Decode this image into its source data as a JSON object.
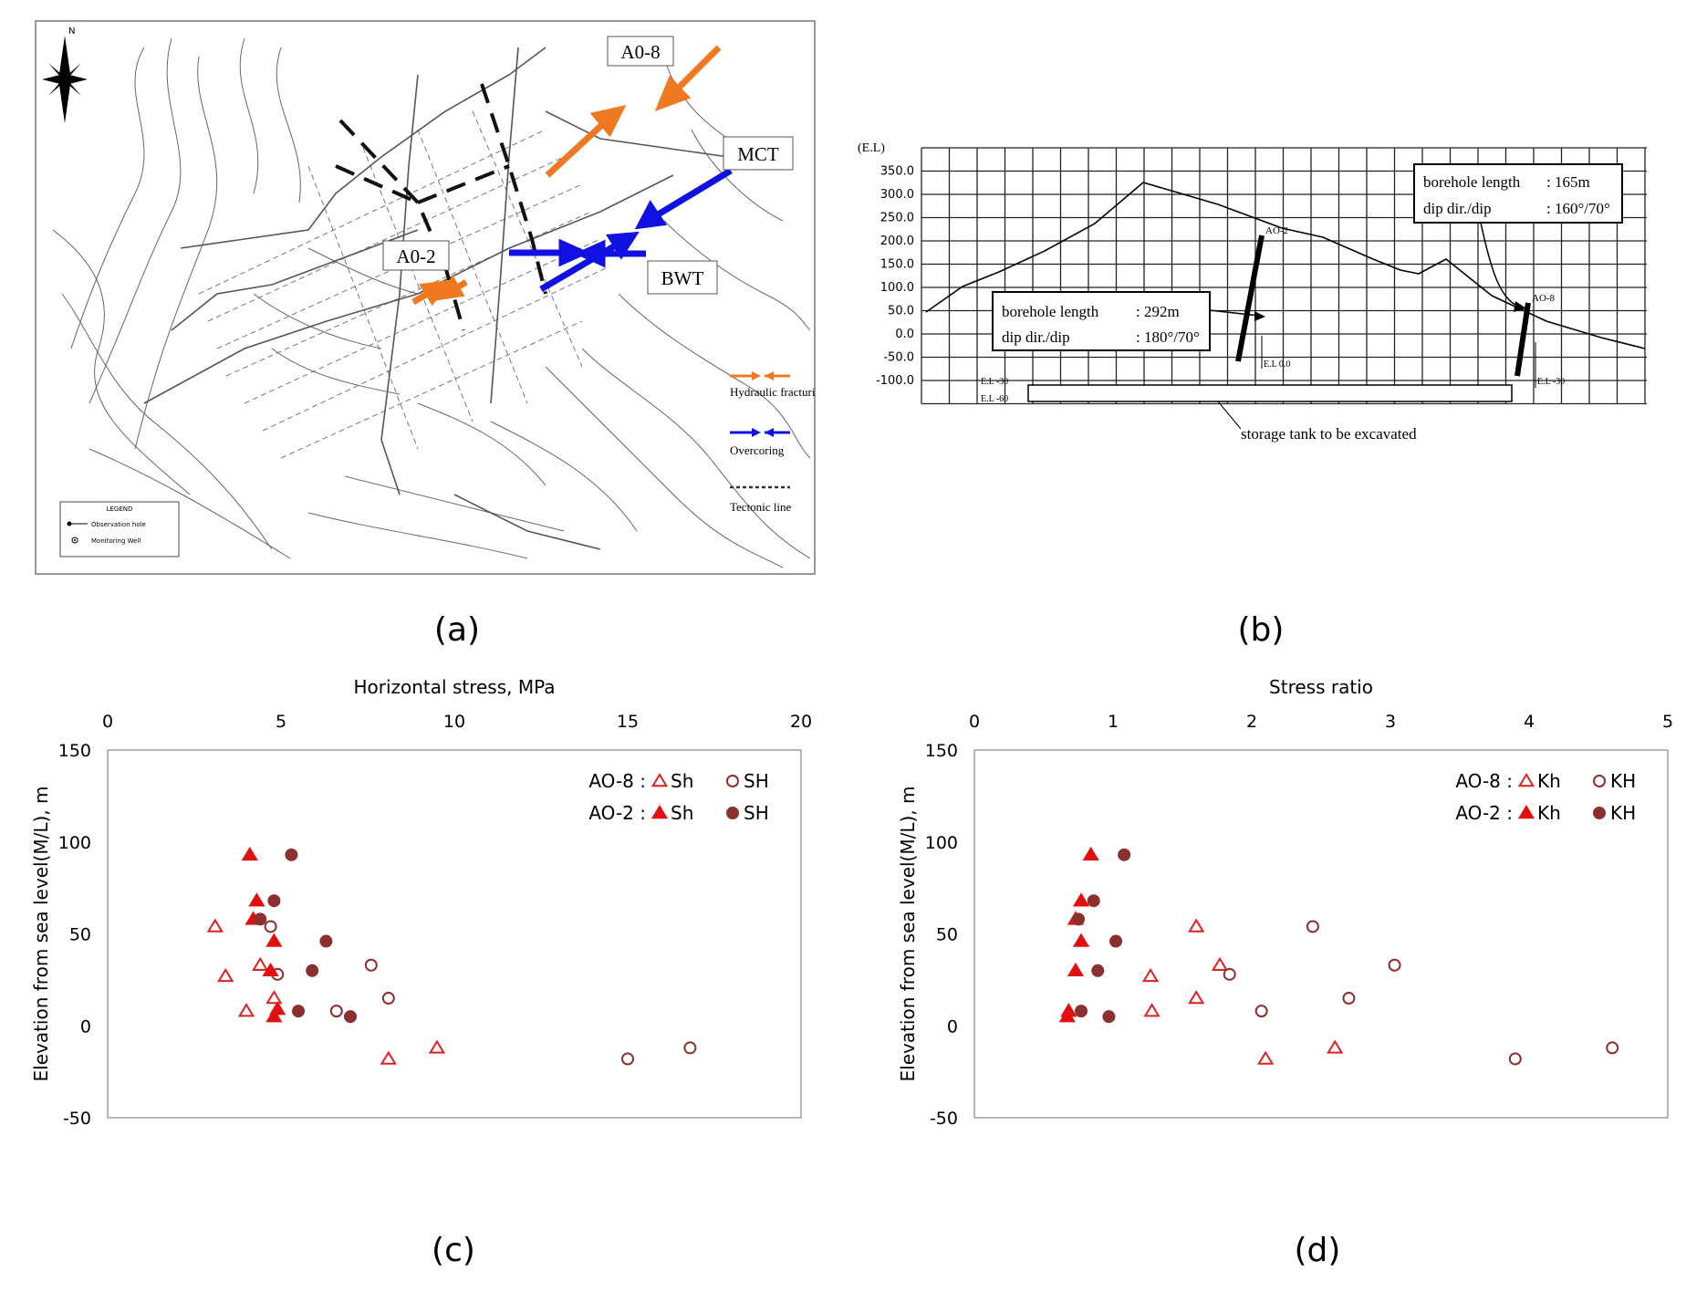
{
  "panel_a": {
    "caption": "(a)",
    "north": "N",
    "labels": {
      "a08": "A0-8",
      "a02": "A0-2",
      "mct": "MCT",
      "bwt": "BWT"
    },
    "side_legend": {
      "hydraulic": "Hydraulic fracturing",
      "overcoring": "Overcoring",
      "tectonic": "Tectonic line"
    },
    "legend_box": {
      "title": "LEGEND",
      "observation": "Observation hole",
      "monitoring": "Monitoring Well"
    },
    "colors": {
      "hydraulic": "#f07820",
      "overcoring": "#1010e0"
    }
  },
  "panel_b": {
    "caption": "(b)",
    "axis_title": "(E.L)",
    "y_ticks": [
      "350.0",
      "300.0",
      "250.0",
      "200.0",
      "150.0",
      "100.0",
      "50.0",
      "0.0",
      "-50.0",
      "-100.0"
    ],
    "box1": {
      "line1_label": "borehole length",
      "line1_value": ": 165m",
      "line2_label": "dip dir./dip",
      "line2_value": ": 160°/70°"
    },
    "box2": {
      "line1_label": "borehole length",
      "line1_value": ": 292m",
      "line2_label": "dip dir./dip",
      "line2_value": ": 180°/70°"
    },
    "hole_labels": {
      "ao2": "AO-2",
      "ao8": "AO-8"
    },
    "el_labels": {
      "el0": "E.L 0.0",
      "el30a": "E.L -30",
      "el60": "E.L -60",
      "el30b": "E.L -30"
    },
    "tank_label": "storage tank to be excavated"
  },
  "chart_data": [
    {
      "type": "scatter",
      "caption": "(c)",
      "xlabel": "Horizontal stress, MPa",
      "ylabel": "Elevation from sea level(M/L), m",
      "xlim": [
        0,
        20
      ],
      "ylim": [
        -50,
        150
      ],
      "x_ticks": [
        0,
        5,
        10,
        15,
        20
      ],
      "y_ticks": [
        150,
        100,
        50,
        0,
        -50
      ],
      "legend": {
        "row1_prefix": "AO-8 :",
        "row2_prefix": "AO-2 :",
        "open_tri": "Sh",
        "open_circ": "SH",
        "fill_tri": "Sh",
        "fill_circ": "SH"
      },
      "series": [
        {
          "name": "AO-8 Sh",
          "marker": "triangle-open",
          "color": "#e02020",
          "points": [
            [
              3.1,
              54
            ],
            [
              3.4,
              27
            ],
            [
              4.4,
              33
            ],
            [
              4.8,
              15
            ],
            [
              4.0,
              8
            ],
            [
              8.1,
              -18
            ],
            [
              9.5,
              -12
            ]
          ]
        },
        {
          "name": "AO-8 SH",
          "marker": "circle-open",
          "color": "#8b2f2f",
          "points": [
            [
              4.7,
              54
            ],
            [
              7.6,
              33
            ],
            [
              4.9,
              28
            ],
            [
              8.1,
              15
            ],
            [
              6.6,
              8
            ],
            [
              15.0,
              -18
            ],
            [
              16.8,
              -12
            ]
          ]
        },
        {
          "name": "AO-2 Sh",
          "marker": "triangle-filled",
          "color": "#e01010",
          "points": [
            [
              4.1,
              93
            ],
            [
              4.3,
              68
            ],
            [
              4.2,
              58
            ],
            [
              4.8,
              46
            ],
            [
              4.7,
              30
            ],
            [
              4.9,
              9
            ],
            [
              4.8,
              5
            ]
          ]
        },
        {
          "name": "AO-2 SH",
          "marker": "circle-filled",
          "color": "#8b2f2f",
          "points": [
            [
              5.3,
              93
            ],
            [
              4.8,
              68
            ],
            [
              4.4,
              58
            ],
            [
              6.3,
              46
            ],
            [
              5.9,
              30
            ],
            [
              5.5,
              8
            ],
            [
              7.0,
              5
            ]
          ]
        }
      ]
    },
    {
      "type": "scatter",
      "caption": "(d)",
      "xlabel": "Stress ratio",
      "ylabel": "Elevation from sea level(M/L), m",
      "xlim": [
        0,
        5
      ],
      "ylim": [
        -50,
        150
      ],
      "x_ticks": [
        0,
        1,
        2,
        3,
        4,
        5
      ],
      "y_ticks": [
        150,
        100,
        50,
        0,
        -50
      ],
      "legend": {
        "row1_prefix": "AO-8 :",
        "row2_prefix": "AO-2 :",
        "open_tri": "Kh",
        "open_circ": "KH",
        "fill_tri": "Kh",
        "fill_circ": "KH"
      },
      "series": [
        {
          "name": "AO-8 Kh",
          "marker": "triangle-open",
          "color": "#e02020",
          "points": [
            [
              1.6,
              54
            ],
            [
              1.77,
              33
            ],
            [
              1.27,
              27
            ],
            [
              1.6,
              15
            ],
            [
              1.28,
              8
            ],
            [
              2.1,
              -18
            ],
            [
              2.6,
              -12
            ]
          ]
        },
        {
          "name": "AO-8 KH",
          "marker": "circle-open",
          "color": "#8b2f2f",
          "points": [
            [
              2.44,
              54
            ],
            [
              3.03,
              33
            ],
            [
              1.84,
              28
            ],
            [
              2.7,
              15
            ],
            [
              2.07,
              8
            ],
            [
              3.9,
              -18
            ],
            [
              4.6,
              -12
            ]
          ]
        },
        {
          "name": "AO-2 Kh",
          "marker": "triangle-filled",
          "color": "#e01010",
          "points": [
            [
              0.84,
              93
            ],
            [
              0.77,
              68
            ],
            [
              0.73,
              58
            ],
            [
              0.77,
              46
            ],
            [
              0.73,
              30
            ],
            [
              0.68,
              8
            ],
            [
              0.67,
              5
            ]
          ]
        },
        {
          "name": "AO-2 KH",
          "marker": "circle-filled",
          "color": "#8b2f2f",
          "points": [
            [
              1.08,
              93
            ],
            [
              0.86,
              68
            ],
            [
              0.75,
              58
            ],
            [
              1.02,
              46
            ],
            [
              0.89,
              30
            ],
            [
              0.77,
              8
            ],
            [
              0.97,
              5
            ]
          ]
        }
      ]
    }
  ]
}
